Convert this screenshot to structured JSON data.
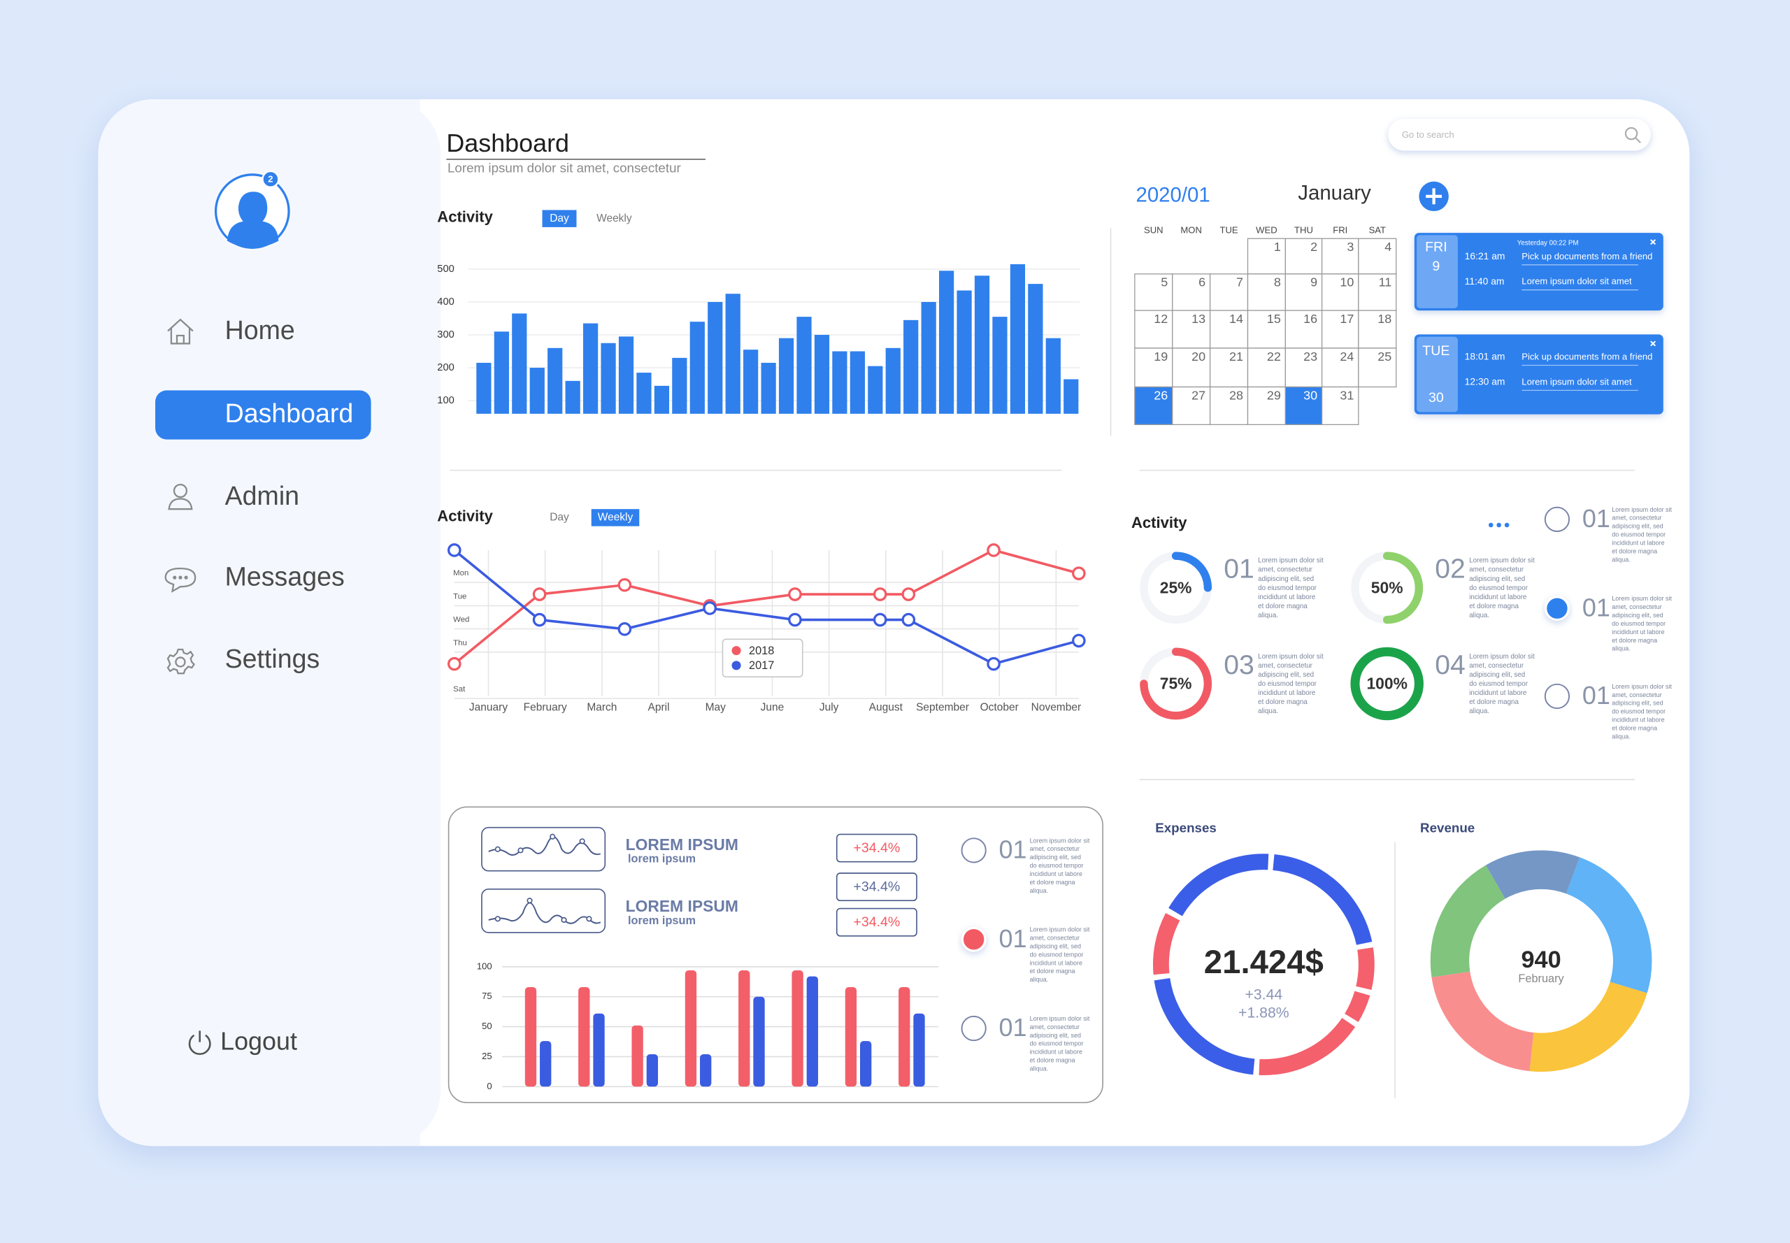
{
  "sidebar": {
    "badge": 2,
    "nav": [
      "Home",
      "Dashboard",
      "Admin",
      "Messages",
      "Settings"
    ],
    "active": 1,
    "logout": "Logout"
  },
  "header": {
    "title": "Dashboard",
    "subtitle": "Lorem ipsum dolor sit amet, consectetur",
    "search": "Go to search"
  },
  "calendar": {
    "year_month": "2020/01",
    "month": "January",
    "weekdays": [
      "SUN",
      "MON",
      "TUE",
      "WED",
      "THU",
      "FRI",
      "SAT"
    ],
    "weeks": [
      [
        null,
        null,
        null,
        1,
        2,
        3,
        4
      ],
      [
        5,
        6,
        7,
        8,
        9,
        10,
        11
      ],
      [
        12,
        13,
        14,
        15,
        16,
        17,
        18
      ],
      [
        19,
        20,
        21,
        22,
        23,
        24,
        25
      ],
      [
        26,
        27,
        28,
        29,
        30,
        31,
        null
      ]
    ],
    "highlight": [
      26,
      30
    ]
  },
  "events": [
    {
      "day": "FRI",
      "date": 9,
      "note": "Yesterday 00:22 PM",
      "items": [
        {
          "time": "16:21 am",
          "text": "Pick up documents from a friend"
        },
        {
          "time": "11:40 am",
          "text": "Lorem ipsum dolor sit amet"
        }
      ]
    },
    {
      "day": "TUE",
      "date": 30,
      "items": [
        {
          "time": "18:01 am",
          "text": "Pick up documents from a friend"
        },
        {
          "time": "12:30 am",
          "text": "Lorem ipsum dolor sit amet"
        }
      ]
    }
  ],
  "chart_data": [
    {
      "type": "bar",
      "title": "Activity",
      "toggle": [
        "Day",
        "Weekly"
      ],
      "toggle_active": 0,
      "color": "#2f80ed",
      "values": [
        215,
        310,
        365,
        200,
        260,
        160,
        335,
        275,
        295,
        185,
        145,
        230,
        340,
        400,
        425,
        255,
        215,
        290,
        355,
        300,
        250,
        250,
        205,
        260,
        345,
        400,
        495,
        435,
        480,
        355,
        515,
        455,
        290,
        165
      ],
      "ylim": [
        60,
        520
      ],
      "yticks": [
        100,
        200,
        300,
        400,
        500
      ],
      "grid": true
    },
    {
      "type": "line",
      "title": "Activity",
      "toggle": [
        "Day",
        "Weekly"
      ],
      "toggle_active": 1,
      "x": [
        0,
        1.5,
        3,
        4.5,
        6,
        7.5,
        8,
        9.5,
        11
      ],
      "xlim": [
        0,
        11
      ],
      "xticks": [
        {
          "value": 0.6,
          "label": "January"
        },
        {
          "value": 1.6,
          "label": "February"
        },
        {
          "value": 2.6,
          "label": "March"
        },
        {
          "value": 3.6,
          "label": "April"
        },
        {
          "value": 4.6,
          "label": "May"
        },
        {
          "value": 5.6,
          "label": "June"
        },
        {
          "value": 6.6,
          "label": "July"
        },
        {
          "value": 7.6,
          "label": "August"
        },
        {
          "value": 8.6,
          "label": "September"
        },
        {
          "value": 9.6,
          "label": "October"
        },
        {
          "value": 10.6,
          "label": "November"
        }
      ],
      "ylim": [
        6,
        0
      ],
      "yticks": [
        {
          "value": 1,
          "label": "Mon"
        },
        {
          "value": 2,
          "label": "Tue"
        },
        {
          "value": 3,
          "label": "Wed"
        },
        {
          "value": 4,
          "label": "Thu"
        },
        {
          "value": 6,
          "label": "Sat"
        }
      ],
      "grid": true,
      "series": [
        {
          "name": "2018",
          "color": "#f25a63",
          "values": [
            4.9,
            1.9,
            1.5,
            2.4,
            1.9,
            1.9,
            1.9,
            0,
            1.0
          ]
        },
        {
          "name": "2017",
          "color": "#3b5be0",
          "values": [
            0,
            3.0,
            3.4,
            2.5,
            3.0,
            3.0,
            3.0,
            4.9,
            3.9
          ]
        }
      ]
    },
    {
      "type": "grouped_bar",
      "ylim": [
        0,
        100
      ],
      "yticks": [
        0,
        25,
        50,
        75,
        100
      ],
      "grid": true,
      "series": [
        {
          "color": "#f25f69",
          "values": [
            83,
            83,
            51,
            97,
            97,
            97,
            83,
            83
          ]
        },
        {
          "color": "#3a5ce0",
          "values": [
            38,
            61,
            27,
            27,
            75,
            92,
            38,
            61
          ]
        }
      ]
    },
    {
      "type": "progress",
      "title": "Activity",
      "values": [
        25,
        50,
        75,
        100
      ],
      "value_labels": [
        "25%",
        "50%",
        "75%",
        "100%"
      ],
      "colors": [
        "#2f80ed",
        "#8fd16a",
        "#f15a64",
        "#1ba34a"
      ],
      "numbers": [
        "01",
        "02",
        "03",
        "04"
      ],
      "texts": [
        "Lorem ipsum dolor sit amet, consectetur adipiscing elit, sed do eiusmod tempor incididunt ut labore et dolore magna aliqua.",
        "Lorem ipsum dolor sit amet, consectetur adipiscing elit, sed do eiusmod tempor incididunt ut labore et dolore magna aliqua.",
        "Lorem ipsum dolor sit amet, consectetur adipiscing elit, sed do eiusmod tempor incididunt ut labore et dolore magna aliqua.",
        "Lorem ipsum dolor sit amet, consectetur adipiscing elit, sed do eiusmod tempor incididunt ut labore et dolore magna aliqua."
      ]
    },
    {
      "type": "donut",
      "title": "Expenses",
      "center": "21.424$",
      "sub": [
        "+3.44",
        "+1.88%"
      ],
      "values": [
        21,
        7,
        5,
        17,
        22,
        10,
        18
      ],
      "colors": [
        "#3b5ee8",
        "#f4606c",
        "#f4606c",
        "#f4606c",
        "#3b5ee8",
        "#f4606c",
        "#3b5ee8"
      ]
    },
    {
      "type": "donut",
      "title": "Revenue",
      "center": 940,
      "sub": [
        "February"
      ],
      "values": [
        14,
        24,
        22,
        21,
        19
      ],
      "colors": [
        "#7497c6",
        "#5fb3f6",
        "#fac43c",
        "#f98e8f",
        "#80c47d"
      ]
    }
  ],
  "radio_lists": [
    {
      "selected": 1,
      "selected_color": "#2f80ed",
      "items": [
        {
          "number": "01",
          "text": "Lorem ipsum dolor sit amet, consectetur adipiscing elit, sed do eiusmod tempor incididunt ut labore et dolore magna aliqua."
        },
        {
          "number": "01",
          "text": "Lorem ipsum dolor sit amet, consectetur adipiscing elit, sed do eiusmod tempor incididunt ut labore et dolore magna aliqua."
        },
        {
          "number": "01",
          "text": "Lorem ipsum dolor sit amet, consectetur adipiscing elit, sed do eiusmod tempor incididunt ut labore et dolore magna aliqua."
        }
      ]
    },
    {
      "selected": 1,
      "selected_color": "#f25a63",
      "items": [
        {
          "number": "01",
          "text": "Lorem ipsum dolor sit amet, consectetur adipiscing elit, sed do eiusmod tempor incididunt ut labore et dolore magna aliqua."
        },
        {
          "number": "01",
          "text": "Lorem ipsum dolor sit amet, consectetur adipiscing elit, sed do eiusmod tempor incididunt ut labore et dolore magna aliqua."
        },
        {
          "number": "01",
          "text": "Lorem ipsum dolor sit amet, consectetur adipiscing elit, sed do eiusmod tempor incididunt ut labore et dolore magna aliqua."
        }
      ]
    }
  ],
  "summary": {
    "items": [
      {
        "title": "LOREM IPSUM",
        "subtitle": "lorem ipsum"
      },
      {
        "title": "LOREM IPSUM",
        "subtitle": "lorem ipsum"
      }
    ],
    "badges": [
      {
        "label": "+34.4%",
        "color": "#f25a63"
      },
      {
        "label": "+34.4%",
        "color": "#5a6a9a"
      },
      {
        "label": "+34.4%",
        "color": "#f25a63"
      }
    ]
  }
}
